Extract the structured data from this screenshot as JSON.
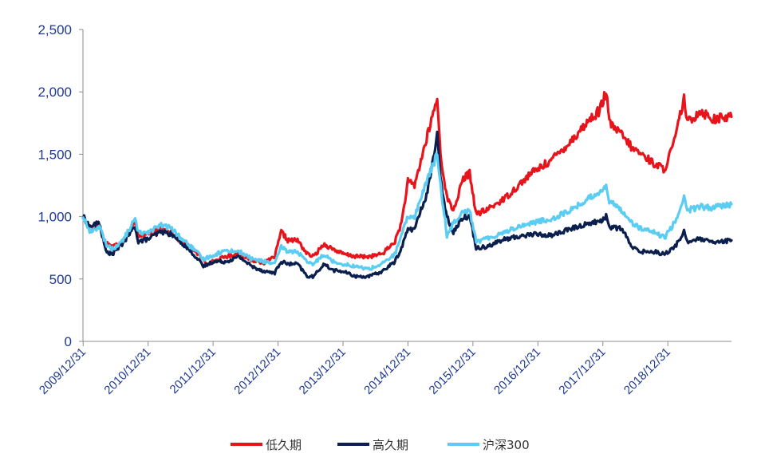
{
  "chart_data": {
    "type": "line",
    "ylim": [
      0,
      2500
    ],
    "y_ticks": [
      0,
      500,
      1000,
      1500,
      2000,
      2500
    ],
    "y_tick_labels": [
      "0",
      "500",
      "1,000",
      "1,500",
      "2,000",
      "2,500"
    ],
    "x_tick_labels": [
      "2009/12/31",
      "2010/12/31",
      "2011/12/31",
      "2012/12/31",
      "2013/12/31",
      "2014/12/31",
      "2015/12/31",
      "2016/12/31",
      "2017/12/31",
      "2018/12/31"
    ],
    "x_range": [
      2009.997,
      2019.98
    ],
    "legend_position": "bottom",
    "series": [
      {
        "name": "低久期",
        "color": "#e8141c",
        "points": [
          [
            2010.0,
            1000
          ],
          [
            2010.1,
            900
          ],
          [
            2010.25,
            930
          ],
          [
            2010.33,
            800
          ],
          [
            2010.45,
            760
          ],
          [
            2010.6,
            800
          ],
          [
            2010.8,
            950
          ],
          [
            2010.85,
            850
          ],
          [
            2011.0,
            860
          ],
          [
            2011.2,
            900
          ],
          [
            2011.35,
            880
          ],
          [
            2011.5,
            800
          ],
          [
            2011.7,
            740
          ],
          [
            2011.9,
            620
          ],
          [
            2012.0,
            640
          ],
          [
            2012.2,
            680
          ],
          [
            2012.4,
            700
          ],
          [
            2012.6,
            650
          ],
          [
            2012.8,
            630
          ],
          [
            2012.95,
            680
          ],
          [
            2013.05,
            880
          ],
          [
            2013.15,
            810
          ],
          [
            2013.3,
            810
          ],
          [
            2013.45,
            700
          ],
          [
            2013.55,
            680
          ],
          [
            2013.7,
            780
          ],
          [
            2013.85,
            740
          ],
          [
            2014.0,
            700
          ],
          [
            2014.2,
            680
          ],
          [
            2014.4,
            680
          ],
          [
            2014.6,
            700
          ],
          [
            2014.8,
            800
          ],
          [
            2014.9,
            950
          ],
          [
            2015.0,
            1280
          ],
          [
            2015.1,
            1250
          ],
          [
            2015.2,
            1450
          ],
          [
            2015.3,
            1650
          ],
          [
            2015.45,
            1950
          ],
          [
            2015.5,
            1500
          ],
          [
            2015.6,
            1150
          ],
          [
            2015.7,
            1050
          ],
          [
            2015.85,
            1300
          ],
          [
            2015.95,
            1350
          ],
          [
            2016.05,
            1020
          ],
          [
            2016.2,
            1050
          ],
          [
            2016.5,
            1150
          ],
          [
            2016.7,
            1250
          ],
          [
            2016.9,
            1350
          ],
          [
            2017.2,
            1450
          ],
          [
            2017.5,
            1600
          ],
          [
            2017.8,
            1780
          ],
          [
            2017.95,
            1850
          ],
          [
            2018.05,
            2000
          ],
          [
            2018.1,
            1750
          ],
          [
            2018.3,
            1650
          ],
          [
            2018.45,
            1550
          ],
          [
            2018.6,
            1500
          ],
          [
            2018.8,
            1420
          ],
          [
            2018.95,
            1380
          ],
          [
            2019.1,
            1600
          ],
          [
            2019.25,
            1950
          ],
          [
            2019.3,
            1750
          ],
          [
            2019.5,
            1850
          ],
          [
            2019.7,
            1780
          ],
          [
            2019.98,
            1800
          ]
        ]
      },
      {
        "name": "高久期",
        "color": "#0a1f4e",
        "points": [
          [
            2010.0,
            1000
          ],
          [
            2010.1,
            920
          ],
          [
            2010.25,
            950
          ],
          [
            2010.35,
            720
          ],
          [
            2010.45,
            700
          ],
          [
            2010.6,
            780
          ],
          [
            2010.8,
            920
          ],
          [
            2010.85,
            800
          ],
          [
            2011.0,
            820
          ],
          [
            2011.2,
            880
          ],
          [
            2011.35,
            860
          ],
          [
            2011.5,
            800
          ],
          [
            2011.7,
            700
          ],
          [
            2011.85,
            600
          ],
          [
            2012.0,
            640
          ],
          [
            2012.2,
            640
          ],
          [
            2012.4,
            680
          ],
          [
            2012.6,
            600
          ],
          [
            2012.8,
            560
          ],
          [
            2012.95,
            550
          ],
          [
            2013.05,
            640
          ],
          [
            2013.15,
            620
          ],
          [
            2013.3,
            620
          ],
          [
            2013.45,
            520
          ],
          [
            2013.55,
            520
          ],
          [
            2013.7,
            620
          ],
          [
            2013.85,
            570
          ],
          [
            2014.0,
            560
          ],
          [
            2014.2,
            520
          ],
          [
            2014.4,
            520
          ],
          [
            2014.6,
            560
          ],
          [
            2014.8,
            640
          ],
          [
            2014.9,
            750
          ],
          [
            2015.0,
            900
          ],
          [
            2015.1,
            900
          ],
          [
            2015.2,
            1050
          ],
          [
            2015.3,
            1200
          ],
          [
            2015.45,
            1650
          ],
          [
            2015.5,
            1300
          ],
          [
            2015.6,
            1000
          ],
          [
            2015.7,
            880
          ],
          [
            2015.85,
            1000
          ],
          [
            2015.95,
            1000
          ],
          [
            2016.05,
            750
          ],
          [
            2016.2,
            760
          ],
          [
            2016.5,
            820
          ],
          [
            2016.7,
            840
          ],
          [
            2016.9,
            860
          ],
          [
            2017.2,
            850
          ],
          [
            2017.5,
            900
          ],
          [
            2017.8,
            950
          ],
          [
            2017.95,
            960
          ],
          [
            2018.05,
            1000
          ],
          [
            2018.1,
            920
          ],
          [
            2018.3,
            900
          ],
          [
            2018.45,
            750
          ],
          [
            2018.6,
            720
          ],
          [
            2018.8,
            720
          ],
          [
            2018.95,
            700
          ],
          [
            2019.1,
            750
          ],
          [
            2019.25,
            880
          ],
          [
            2019.3,
            800
          ],
          [
            2019.5,
            820
          ],
          [
            2019.7,
            790
          ],
          [
            2019.98,
            810
          ]
        ]
      },
      {
        "name": "沪深300",
        "color": "#5bcdf2",
        "points": [
          [
            2010.0,
            1000
          ],
          [
            2010.1,
            880
          ],
          [
            2010.25,
            920
          ],
          [
            2010.35,
            780
          ],
          [
            2010.45,
            740
          ],
          [
            2010.6,
            800
          ],
          [
            2010.8,
            980
          ],
          [
            2010.85,
            870
          ],
          [
            2011.0,
            880
          ],
          [
            2011.2,
            930
          ],
          [
            2011.35,
            910
          ],
          [
            2011.5,
            830
          ],
          [
            2011.7,
            740
          ],
          [
            2011.85,
            660
          ],
          [
            2012.0,
            690
          ],
          [
            2012.2,
            730
          ],
          [
            2012.4,
            720
          ],
          [
            2012.6,
            660
          ],
          [
            2012.8,
            640
          ],
          [
            2012.95,
            620
          ],
          [
            2013.05,
            760
          ],
          [
            2013.15,
            720
          ],
          [
            2013.3,
            720
          ],
          [
            2013.45,
            630
          ],
          [
            2013.55,
            620
          ],
          [
            2013.7,
            700
          ],
          [
            2013.85,
            640
          ],
          [
            2014.0,
            620
          ],
          [
            2014.2,
            600
          ],
          [
            2014.4,
            580
          ],
          [
            2014.6,
            620
          ],
          [
            2014.8,
            700
          ],
          [
            2014.9,
            850
          ],
          [
            2015.0,
            1000
          ],
          [
            2015.1,
            1000
          ],
          [
            2015.2,
            1150
          ],
          [
            2015.3,
            1300
          ],
          [
            2015.45,
            1500
          ],
          [
            2015.5,
            1250
          ],
          [
            2015.6,
            850
          ],
          [
            2015.7,
            950
          ],
          [
            2015.85,
            1050
          ],
          [
            2015.95,
            1050
          ],
          [
            2016.05,
            800
          ],
          [
            2016.2,
            820
          ],
          [
            2016.5,
            880
          ],
          [
            2016.7,
            920
          ],
          [
            2016.9,
            950
          ],
          [
            2017.2,
            980
          ],
          [
            2017.5,
            1050
          ],
          [
            2017.8,
            1150
          ],
          [
            2017.95,
            1200
          ],
          [
            2018.05,
            1250
          ],
          [
            2018.1,
            1120
          ],
          [
            2018.3,
            1050
          ],
          [
            2018.45,
            950
          ],
          [
            2018.6,
            900
          ],
          [
            2018.8,
            870
          ],
          [
            2018.95,
            830
          ],
          [
            2019.1,
            950
          ],
          [
            2019.25,
            1150
          ],
          [
            2019.3,
            1050
          ],
          [
            2019.5,
            1080
          ],
          [
            2019.7,
            1070
          ],
          [
            2019.98,
            1100
          ]
        ]
      }
    ]
  }
}
